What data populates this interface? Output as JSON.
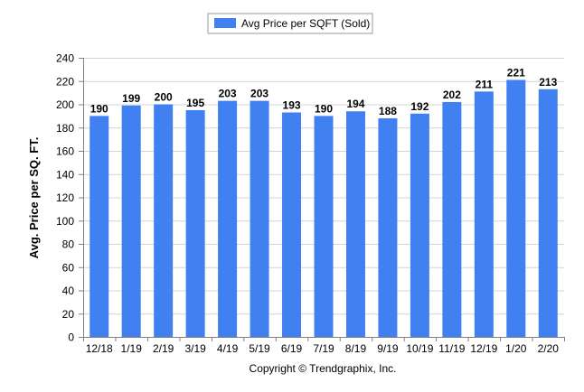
{
  "chart_data": {
    "type": "bar",
    "categories": [
      "12/18",
      "1/19",
      "2/19",
      "3/19",
      "4/19",
      "5/19",
      "6/19",
      "7/19",
      "8/19",
      "9/19",
      "10/19",
      "11/19",
      "12/19",
      "1/20",
      "2/20"
    ],
    "series": [
      {
        "name": "Avg Price per SQFT (Sold)",
        "color": "#4080f0",
        "values": [
          190,
          199,
          200,
          195,
          203,
          203,
          193,
          190,
          194,
          188,
          192,
          202,
          211,
          221,
          213
        ]
      }
    ],
    "ylabel": "Avg. Price per SQ. FT.",
    "xlabel": "",
    "ylim": [
      0,
      240
    ],
    "yticks": [
      0,
      20,
      40,
      60,
      80,
      100,
      120,
      140,
      160,
      180,
      200,
      220,
      240
    ],
    "grid": true,
    "legend_position": "top-center",
    "data_labels": true
  },
  "footer": "Copyright © Trendgraphix, Inc."
}
